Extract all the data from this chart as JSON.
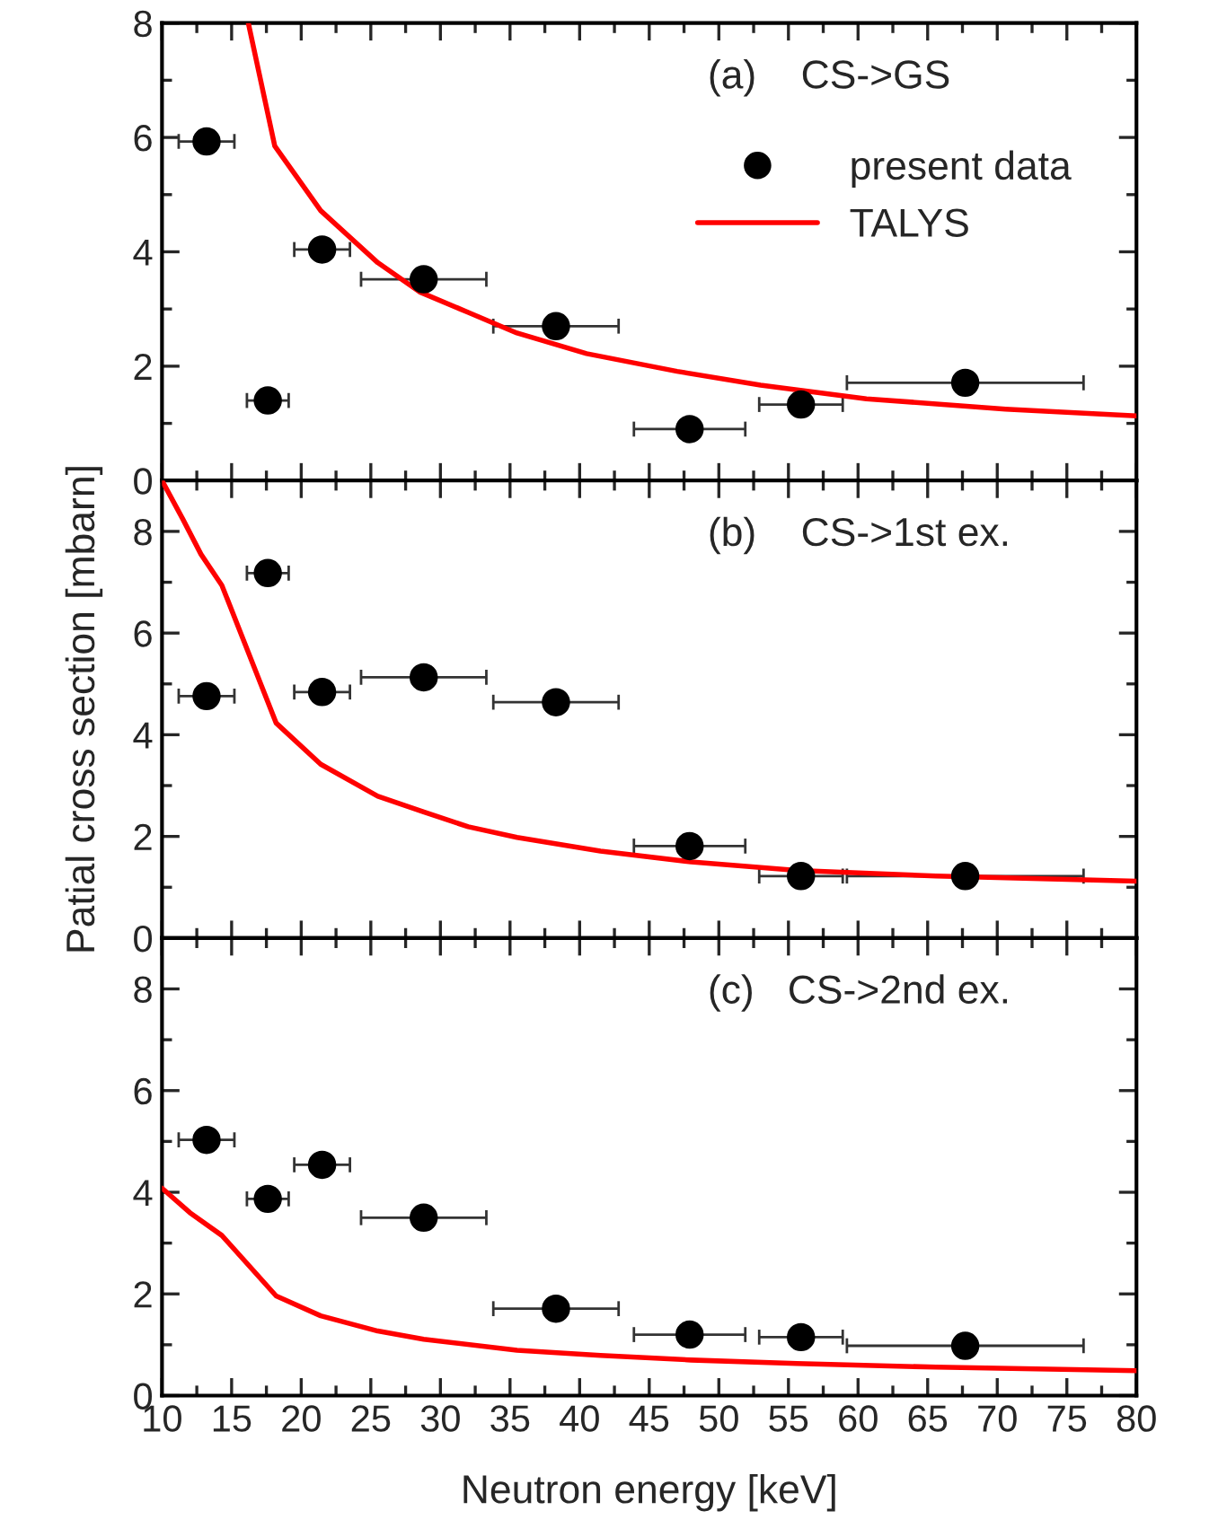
{
  "chart_data": [
    {
      "type": "scatter",
      "annotations": [
        "(a)    CS->GS"
      ],
      "xlim": [
        10,
        80
      ],
      "xticks": [
        10,
        15,
        20,
        25,
        30,
        35,
        40,
        45,
        50,
        55,
        60,
        65,
        70,
        75,
        80
      ],
      "ylim": [
        0,
        8
      ],
      "yticks": [
        0,
        2,
        4,
        6,
        8
      ],
      "tick_labels": "y",
      "grid": false,
      "legend": "top right",
      "series": [
        {
          "name": "present data",
          "color": "#000000",
          "marker": "circle",
          "x": [
            13.2,
            17.6,
            21.5,
            28.8,
            38.3,
            47.9,
            55.9,
            67.7
          ],
          "values": [
            5.93,
            1.4,
            4.04,
            3.52,
            2.7,
            0.9,
            1.33,
            1.71
          ],
          "xerrors": [
            2,
            1.5,
            2,
            4.5,
            4.5,
            4,
            3,
            8.5
          ],
          "errors": [
            0.15,
            null,
            null,
            null,
            null,
            null,
            null,
            null
          ]
        },
        {
          "name": "TALYS",
          "type": "line",
          "color": "#ff0000",
          "line_style": "solid",
          "marker": "none",
          "x": [
            16.2,
            18.1,
            21.4,
            25.5,
            28.5,
            32,
            35.5,
            40.5,
            47,
            53,
            60.6,
            70.6,
            80
          ],
          "values": [
            8,
            5.85,
            4.72,
            3.81,
            3.3,
            2.94,
            2.58,
            2.22,
            1.91,
            1.67,
            1.43,
            1.25,
            1.13
          ]
        }
      ]
    },
    {
      "type": "scatter",
      "annotations": [
        "(b)    CS->1st ex."
      ],
      "ylabel": "Patial cross section [mbarn]",
      "xlim": [
        10,
        80
      ],
      "xticks": [
        10,
        15,
        20,
        25,
        30,
        35,
        40,
        45,
        50,
        55,
        60,
        65,
        70,
        75,
        80
      ],
      "ylim": [
        0,
        9
      ],
      "yticks": [
        0,
        2,
        4,
        6,
        8
      ],
      "tick_labels": "y",
      "grid": false,
      "series": [
        {
          "color": "#000000",
          "marker": "circle",
          "x": [
            13.2,
            17.6,
            21.5,
            28.8,
            38.3,
            47.9,
            55.9,
            67.7
          ],
          "values": [
            4.76,
            7.18,
            4.84,
            5.13,
            4.64,
            1.81,
            1.22,
            1.22
          ],
          "xerrors": [
            2,
            1.5,
            2,
            4.5,
            4.5,
            4,
            3,
            8.5
          ],
          "errors": [
            null,
            0.2,
            null,
            null,
            null,
            null,
            null,
            null
          ]
        },
        {
          "type": "line",
          "color": "#ff0000",
          "line_style": "solid",
          "marker": "none",
          "x": [
            10,
            11.5,
            12.8,
            14.3,
            18.2,
            21.4,
            25.5,
            28.8,
            32,
            35.5,
            41.5,
            48,
            55.6,
            65.6,
            80
          ],
          "values": [
            9,
            8.24,
            7.55,
            6.94,
            4.23,
            3.42,
            2.79,
            2.48,
            2.19,
            1.98,
            1.71,
            1.5,
            1.33,
            1.22,
            1.12
          ]
        }
      ]
    },
    {
      "type": "scatter",
      "annotations": [
        "(c)   CS->2nd ex."
      ],
      "xlabel": "Neutron energy [keV]",
      "xlim": [
        10,
        80
      ],
      "xticks": [
        10,
        15,
        20,
        25,
        30,
        35,
        40,
        45,
        50,
        55,
        60,
        65,
        70,
        75,
        80
      ],
      "ylim": [
        0,
        9
      ],
      "yticks": [
        0,
        2,
        4,
        6,
        8
      ],
      "grid": false,
      "series": [
        {
          "color": "#000000",
          "marker": "circle",
          "x": [
            13.2,
            17.6,
            21.5,
            28.8,
            38.3,
            47.9,
            55.9,
            67.7
          ],
          "values": [
            5.03,
            3.87,
            4.54,
            3.5,
            1.71,
            1.2,
            1.15,
            0.98
          ],
          "xerrors": [
            2,
            1.5,
            2,
            4.5,
            4.5,
            4,
            3,
            8.5
          ]
        },
        {
          "type": "line",
          "color": "#ff0000",
          "line_style": "solid",
          "marker": "none",
          "x": [
            10,
            12,
            14.3,
            18.2,
            21.4,
            25.5,
            28.8,
            35.5,
            41.5,
            48,
            55.6,
            65.6,
            80
          ],
          "values": [
            4.08,
            3.6,
            3.15,
            1.96,
            1.57,
            1.27,
            1.11,
            0.89,
            0.79,
            0.7,
            0.63,
            0.56,
            0.49
          ]
        }
      ]
    }
  ]
}
